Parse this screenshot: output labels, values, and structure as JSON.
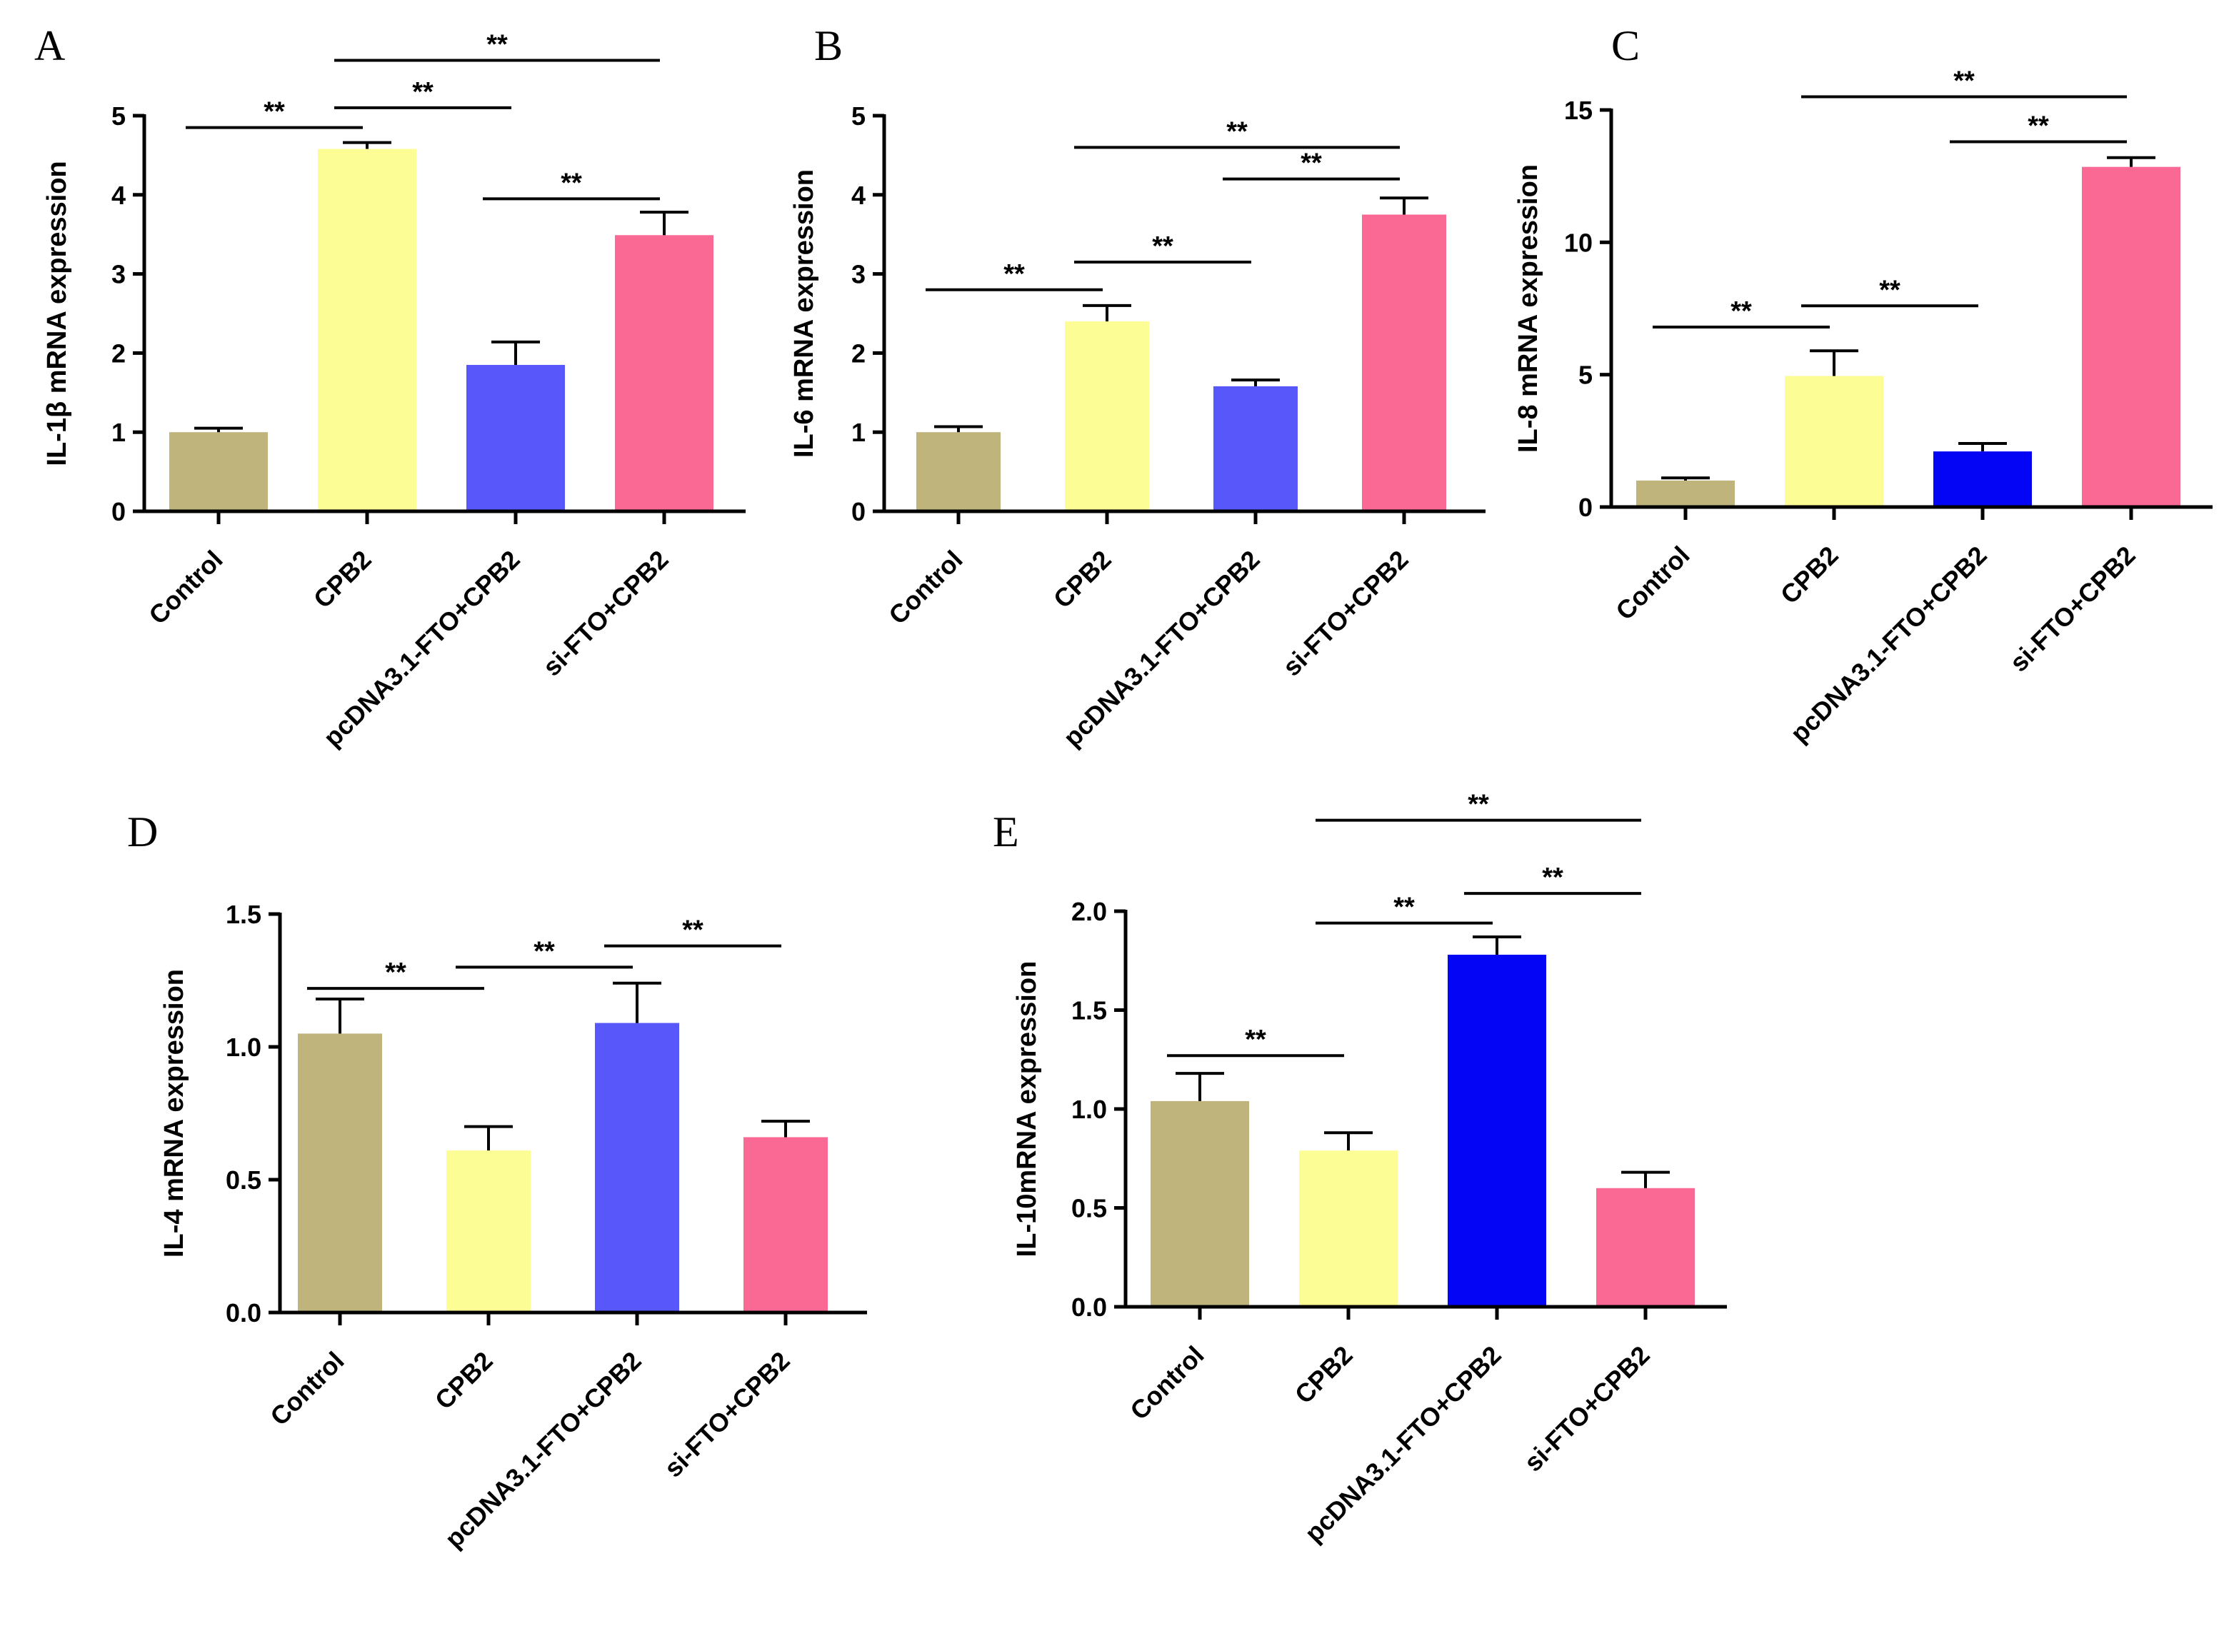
{
  "colors": {
    "Control": "#bfb47c",
    "CPB2": "#fdfd96",
    "pcDNA3.1-FTO+CPB2": "#5858fa",
    "pcDNA3.1-FTO+CPB2_dark": "#0505f5",
    "si-FTO+CPB2": "#fa6894"
  },
  "chart_data": [
    {
      "panel": "A",
      "type": "bar",
      "categories": [
        "Control",
        "CPB2",
        "pcDNA3.1-FTO+CPB2",
        "si-FTO+CPB2"
      ],
      "values": [
        1.0,
        4.58,
        1.85,
        3.49
      ],
      "errors": [
        0.05,
        0.08,
        0.29,
        0.29
      ],
      "bar_colors": [
        "#bfb47c",
        "#fdfd96",
        "#5858fa",
        "#fa6894"
      ],
      "ylabel": "IL-1β mRNA expression",
      "ylim": [
        0,
        5
      ],
      "yticks": [
        0,
        1,
        2,
        3,
        4,
        5
      ],
      "ytick_labels": [
        "0",
        "1",
        "2",
        "3",
        "4",
        "5"
      ],
      "significance": [
        {
          "from": 0,
          "to": 1,
          "y": 4.85,
          "label": "**"
        },
        {
          "from": 1,
          "to": 2,
          "y": 5.1,
          "label": "**"
        },
        {
          "from": 1,
          "to": 3,
          "y": 5.7,
          "label": "**"
        },
        {
          "from": 2,
          "to": 3,
          "y": 3.95,
          "label": "**"
        }
      ]
    },
    {
      "panel": "B",
      "type": "bar",
      "categories": [
        "Control",
        "CPB2",
        "pcDNA3.1-FTO+CPB2",
        "si-FTO+CPB2"
      ],
      "values": [
        1.0,
        2.4,
        1.58,
        3.75
      ],
      "errors": [
        0.07,
        0.2,
        0.08,
        0.21
      ],
      "bar_colors": [
        "#bfb47c",
        "#fdfd96",
        "#5858fa",
        "#fa6894"
      ],
      "ylabel": "IL-6  mRNA expression",
      "ylim": [
        0,
        5
      ],
      "yticks": [
        0,
        1,
        2,
        3,
        4,
        5
      ],
      "ytick_labels": [
        "0",
        "1",
        "2",
        "3",
        "4",
        "5"
      ],
      "significance": [
        {
          "from": 0,
          "to": 1,
          "y": 2.8,
          "label": "**"
        },
        {
          "from": 1,
          "to": 2,
          "y": 3.15,
          "label": "**"
        },
        {
          "from": 1,
          "to": 3,
          "y": 4.6,
          "label": "**"
        },
        {
          "from": 2,
          "to": 3,
          "y": 4.2,
          "label": "**"
        }
      ]
    },
    {
      "panel": "C",
      "type": "bar",
      "categories": [
        "Control",
        "CPB2",
        "pcDNA3.1-FTO+CPB2",
        "si-FTO+CPB2"
      ],
      "values": [
        1.0,
        4.95,
        2.1,
        12.85
      ],
      "errors": [
        0.1,
        0.95,
        0.3,
        0.35
      ],
      "bar_colors": [
        "#bfb47c",
        "#fdfd96",
        "#0505f5",
        "#fa6894"
      ],
      "ylabel": "IL-8 mRNA expression",
      "ylim": [
        0,
        15
      ],
      "yticks": [
        0,
        5,
        10,
        15
      ],
      "ytick_labels": [
        "0",
        "5",
        "10",
        "15"
      ],
      "significance": [
        {
          "from": 0,
          "to": 1,
          "y": 6.8,
          "label": "**"
        },
        {
          "from": 1,
          "to": 2,
          "y": 7.6,
          "label": "**"
        },
        {
          "from": 1,
          "to": 3,
          "y": 15.5,
          "label": "**"
        },
        {
          "from": 2,
          "to": 3,
          "y": 13.8,
          "label": "**"
        }
      ]
    },
    {
      "panel": "D",
      "type": "bar",
      "categories": [
        "Control",
        "CPB2",
        "pcDNA3.1-FTO+CPB2",
        "si-FTO+CPB2"
      ],
      "values": [
        1.05,
        0.61,
        1.09,
        0.66
      ],
      "errors": [
        0.13,
        0.09,
        0.15,
        0.06
      ],
      "bar_colors": [
        "#bfb47c",
        "#fdfd96",
        "#5858fa",
        "#fa6894"
      ],
      "ylabel": "IL-4 mRNA expression",
      "ylim": [
        0,
        1.5
      ],
      "yticks": [
        0,
        0.5,
        1.0,
        1.5
      ],
      "ytick_labels": [
        "0.0",
        "0.5",
        "1.0",
        "1.5"
      ],
      "significance": [
        {
          "from": 0,
          "to": 1,
          "y": 1.22,
          "label": "**"
        },
        {
          "from": 1,
          "to": 2,
          "y": 1.3,
          "label": "**"
        },
        {
          "from": 2,
          "to": 3,
          "y": 1.38,
          "label": "**"
        }
      ]
    },
    {
      "panel": "E",
      "type": "bar",
      "categories": [
        "Control",
        "CPB2",
        "pcDNA3.1-FTO+CPB2",
        "si-FTO+CPB2"
      ],
      "values": [
        1.04,
        0.79,
        1.78,
        0.6
      ],
      "errors": [
        0.14,
        0.09,
        0.09,
        0.08
      ],
      "bar_colors": [
        "#bfb47c",
        "#fdfd96",
        "#0505f5",
        "#fa6894"
      ],
      "ylabel": "IL-10mRNA expression",
      "ylim": [
        0,
        2.0
      ],
      "yticks": [
        0,
        0.5,
        1.0,
        1.5,
        2.0
      ],
      "ytick_labels": [
        "0.0",
        "0.5",
        "1.0",
        "1.5",
        "2.0"
      ],
      "significance": [
        {
          "from": 0,
          "to": 1,
          "y": 1.27,
          "label": "**"
        },
        {
          "from": 1,
          "to": 2,
          "y": 1.94,
          "label": "**"
        },
        {
          "from": 1,
          "to": 3,
          "y": 2.46,
          "label": "**"
        },
        {
          "from": 2,
          "to": 3,
          "y": 2.09,
          "label": "**"
        }
      ]
    }
  ]
}
